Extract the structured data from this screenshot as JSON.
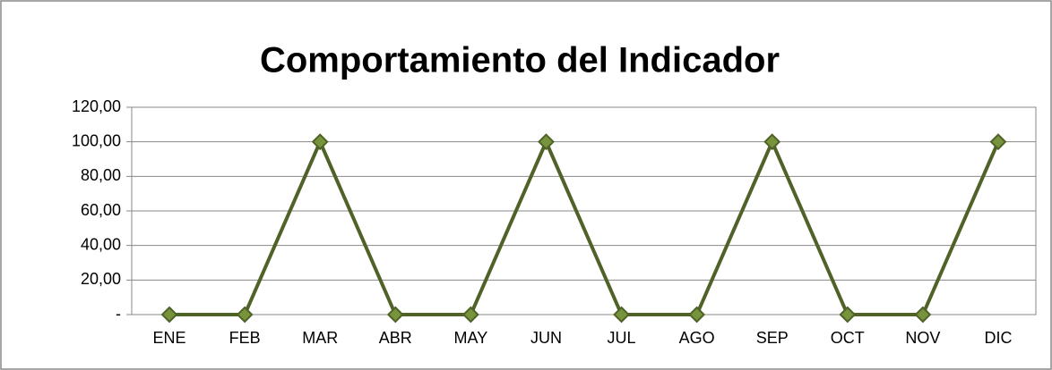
{
  "chart_data": {
    "type": "line",
    "title": "Comportamiento del Indicador",
    "categories": [
      "ENE",
      "FEB",
      "MAR",
      "ABR",
      "MAY",
      "JUN",
      "JUL",
      "AGO",
      "SEP",
      "OCT",
      "NOV",
      "DIC"
    ],
    "series": [
      {
        "color": "#4f6228",
        "marker_color": "#77933c",
        "values": [
          0,
          0,
          100,
          0,
          0,
          100,
          0,
          0,
          100,
          0,
          0,
          100
        ]
      }
    ],
    "ylim": [
      0,
      120
    ],
    "yticks": [
      {
        "value": 0,
        "label": "-"
      },
      {
        "value": 20,
        "label": "20,00"
      },
      {
        "value": 40,
        "label": "40,00"
      },
      {
        "value": 60,
        "label": "60,00"
      },
      {
        "value": 80,
        "label": "80,00"
      },
      {
        "value": 100,
        "label": "100,00"
      },
      {
        "value": 120,
        "label": "120,00"
      }
    ],
    "grid": true
  }
}
